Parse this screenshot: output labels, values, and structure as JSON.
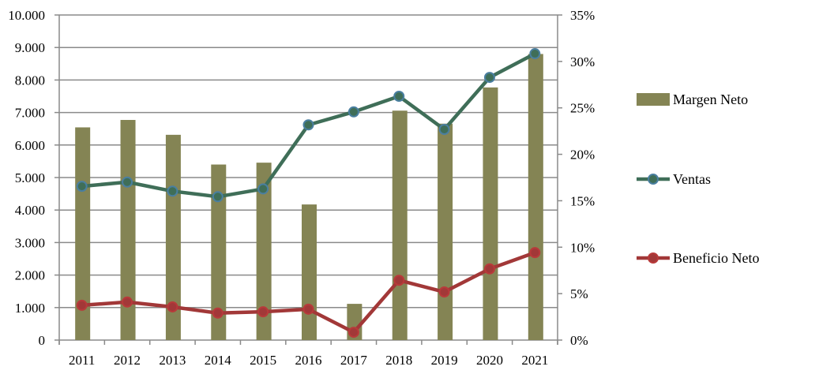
{
  "chart_data": {
    "type": "bar",
    "title": "",
    "categories": [
      "2011",
      "2012",
      "2013",
      "2014",
      "2015",
      "2016",
      "2017",
      "2018",
      "2019",
      "2020",
      "2021"
    ],
    "series": [
      {
        "name": "Margen Neto",
        "type": "bar",
        "axis": "right",
        "color": "#848454",
        "values": [
          22.9,
          23.7,
          22.1,
          18.9,
          19.1,
          14.6,
          3.9,
          24.7,
          23.3,
          27.2,
          30.8
        ]
      },
      {
        "name": "Ventas",
        "type": "line",
        "axis": "left",
        "color": "#3f6e58",
        "marker_color": "#4a7fa0",
        "values": [
          4730,
          4860,
          4580,
          4410,
          4650,
          6620,
          7020,
          7500,
          6480,
          8080,
          8810
        ]
      },
      {
        "name": "Beneficio Neto",
        "type": "line",
        "axis": "left",
        "color": "#a23838",
        "marker_color": "#b83a3a",
        "values": [
          1070,
          1170,
          1020,
          830,
          870,
          950,
          240,
          1840,
          1480,
          2190,
          2690
        ]
      }
    ],
    "left_axis": {
      "ylim": [
        0,
        10000
      ],
      "ticks": [
        "0",
        "1.000",
        "2.000",
        "3.000",
        "4.000",
        "5.000",
        "6.000",
        "7.000",
        "8.000",
        "9.000",
        "10.000"
      ]
    },
    "right_axis": {
      "ylim": [
        0,
        35
      ],
      "ticks": [
        "0%",
        "5%",
        "10%",
        "15%",
        "20%",
        "25%",
        "30%",
        "35%"
      ]
    },
    "grid": true,
    "legend_position": "right"
  }
}
